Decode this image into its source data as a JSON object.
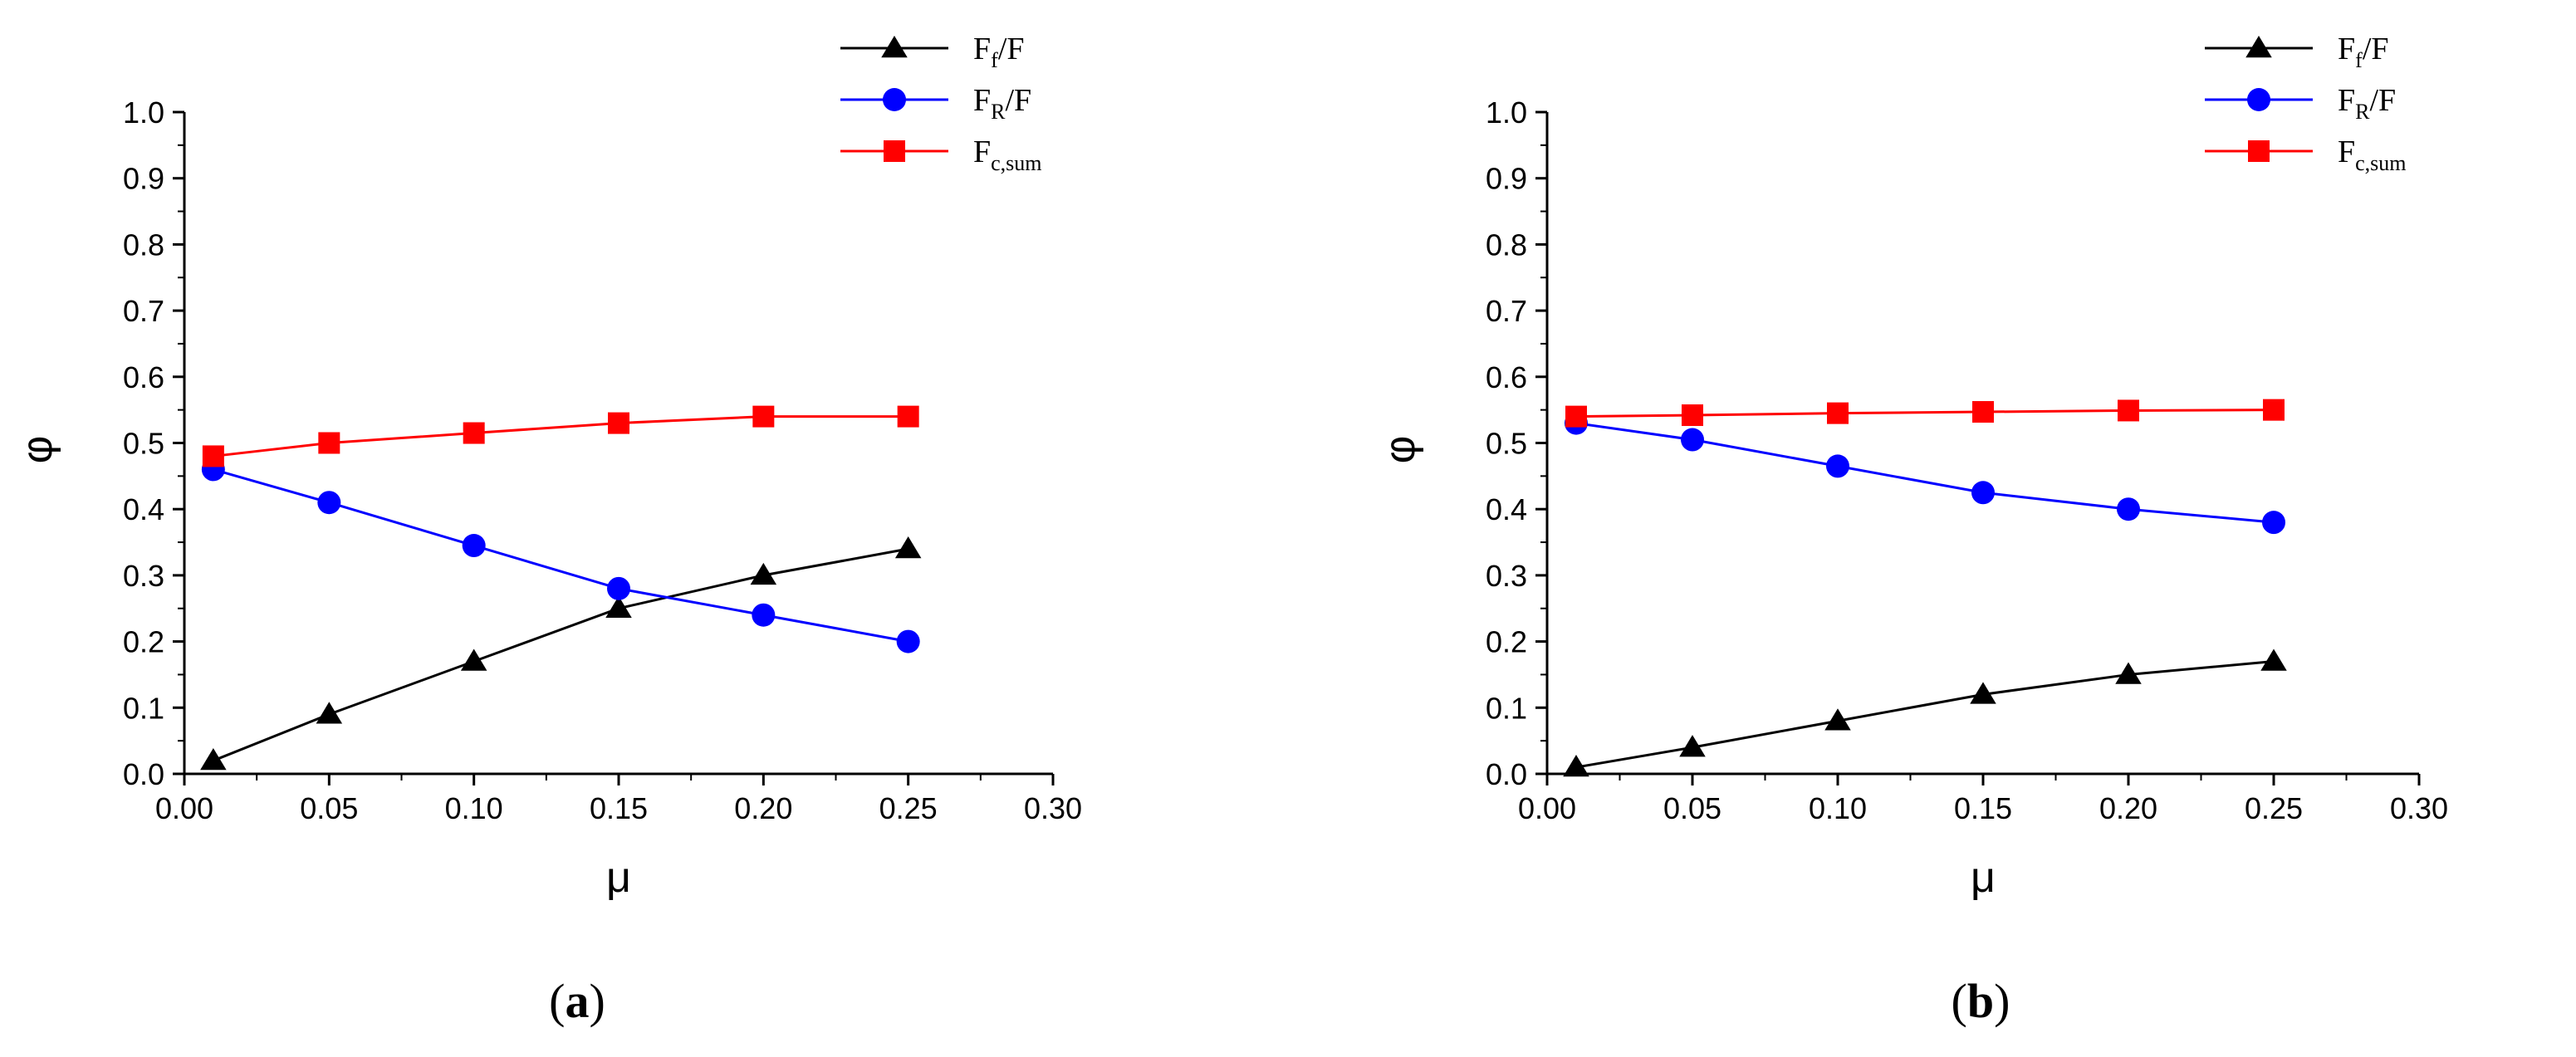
{
  "chart_data": [
    {
      "type": "line",
      "panel_label": "a",
      "xlabel": "μ",
      "ylabel": "φ",
      "xlim": [
        0.0,
        0.3
      ],
      "ylim": [
        0.0,
        1.0
      ],
      "xticks": [
        "0.00",
        "0.05",
        "0.10",
        "0.15",
        "0.20",
        "0.25",
        "0.30"
      ],
      "yticks": [
        "0.0",
        "0.1",
        "0.2",
        "0.3",
        "0.4",
        "0.5",
        "0.6",
        "0.7",
        "0.8",
        "0.9",
        "1.0"
      ],
      "x": [
        0.01,
        0.05,
        0.1,
        0.15,
        0.2,
        0.25
      ],
      "legend_position": "top-right",
      "series": [
        {
          "name": "Ff/F",
          "label_main": "F",
          "label_sub": "f",
          "label_tail": "/F",
          "color": "#000000",
          "marker": "triangle",
          "values": [
            0.02,
            0.09,
            0.17,
            0.25,
            0.3,
            0.34
          ]
        },
        {
          "name": "FR/F",
          "label_main": "F",
          "label_sub": "R",
          "label_tail": "/F",
          "color": "#0000ff",
          "marker": "circle",
          "values": [
            0.46,
            0.41,
            0.345,
            0.28,
            0.24,
            0.2
          ]
        },
        {
          "name": "Fc,sum",
          "label_main": "F",
          "label_sub": "c,sum",
          "label_tail": "",
          "color": "#ff0000",
          "marker": "square",
          "values": [
            0.48,
            0.5,
            0.515,
            0.53,
            0.54,
            0.54
          ]
        }
      ]
    },
    {
      "type": "line",
      "panel_label": "b",
      "xlabel": "μ",
      "ylabel": "φ",
      "xlim": [
        0.0,
        0.3
      ],
      "ylim": [
        0.0,
        1.0
      ],
      "xticks": [
        "0.00",
        "0.05",
        "0.10",
        "0.15",
        "0.20",
        "0.25",
        "0.30"
      ],
      "yticks": [
        "0.0",
        "0.1",
        "0.2",
        "0.3",
        "0.4",
        "0.5",
        "0.6",
        "0.7",
        "0.8",
        "0.9",
        "1.0"
      ],
      "x": [
        0.01,
        0.05,
        0.1,
        0.15,
        0.2,
        0.25
      ],
      "legend_position": "top-right",
      "series": [
        {
          "name": "Ff/F",
          "label_main": "F",
          "label_sub": "f",
          "label_tail": "/F",
          "color": "#000000",
          "marker": "triangle",
          "values": [
            0.01,
            0.04,
            0.08,
            0.12,
            0.15,
            0.17
          ]
        },
        {
          "name": "FR/F",
          "label_main": "F",
          "label_sub": "R",
          "label_tail": "/F",
          "color": "#0000ff",
          "marker": "circle",
          "values": [
            0.53,
            0.505,
            0.465,
            0.425,
            0.4,
            0.38
          ]
        },
        {
          "name": "Fc,sum",
          "label_main": "F",
          "label_sub": "c,sum",
          "label_tail": "",
          "color": "#ff0000",
          "marker": "square",
          "values": [
            0.54,
            0.542,
            0.545,
            0.547,
            0.549,
            0.55
          ]
        }
      ]
    }
  ]
}
